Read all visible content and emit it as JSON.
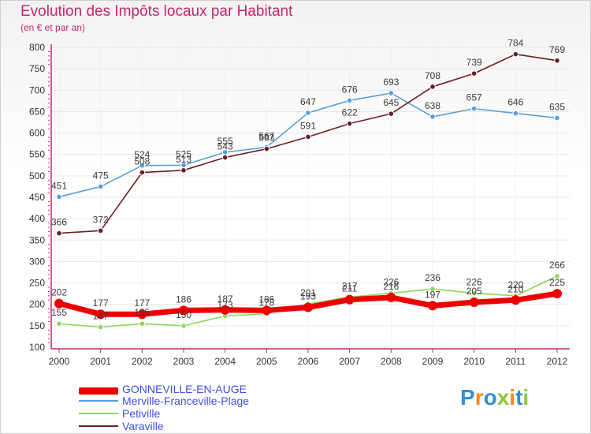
{
  "chart_data": {
    "type": "line",
    "title": "Evolution des Impôts locaux par Habitant",
    "subtitle": "(en € et par an)",
    "xlabel": "",
    "ylabel": "",
    "ylim": [
      100,
      800
    ],
    "yticks": [
      "100",
      "150",
      "200",
      "250",
      "300",
      "350",
      "400",
      "450",
      "500",
      "550",
      "600",
      "650",
      "700",
      "750",
      "800"
    ],
    "categories": [
      "2000",
      "2001",
      "2002",
      "2003",
      "2004",
      "2005",
      "2006",
      "2007",
      "2008",
      "2009",
      "2010",
      "2011",
      "2012"
    ],
    "series": [
      {
        "name": "GONNEVILLE-EN-AUGE",
        "color": "#ee0000",
        "values": [
          202,
          177,
          177,
          186,
          187,
          186,
          193,
          211,
          216,
          197,
          205,
          210,
          225
        ],
        "labels": [
          "202",
          "177",
          "177",
          "186",
          "187",
          "186",
          "193",
          "211",
          "216",
          "197",
          "205",
          "210",
          "225"
        ]
      },
      {
        "name": "Merville-Franceville-Plage",
        "color": "#5a9fd6",
        "values": [
          451,
          475,
          524,
          525,
          555,
          567,
          647,
          676,
          693,
          638,
          657,
          646,
          635
        ],
        "labels": [
          "451",
          "475",
          "524",
          "525",
          "555",
          "567",
          "647",
          "676",
          "693",
          "638",
          "657",
          "646",
          "635"
        ]
      },
      {
        "name": "Petiville",
        "color": "#8ed65a",
        "values": [
          155,
          147,
          155,
          150,
          173,
          178,
          201,
          217,
          226,
          236,
          226,
          220,
          266
        ],
        "labels": [
          "155",
          "147",
          "155",
          "150",
          "173",
          "178",
          "201",
          "217",
          "226",
          "236",
          "226",
          "220",
          "266"
        ]
      },
      {
        "name": "Varaville",
        "color": "#6a1f22",
        "values": [
          366,
          372,
          508,
          513,
          543,
          563,
          591,
          622,
          645,
          708,
          739,
          784,
          769
        ],
        "labels": [
          "366",
          "372",
          "508",
          "513",
          "543",
          "563",
          "591",
          "622",
          "645",
          "708",
          "739",
          "784",
          "769"
        ]
      }
    ],
    "legend_position": "bottom-left"
  },
  "branding": {
    "logo_text": [
      "P",
      "r",
      "o",
      "x",
      "i",
      "t",
      "i"
    ]
  }
}
